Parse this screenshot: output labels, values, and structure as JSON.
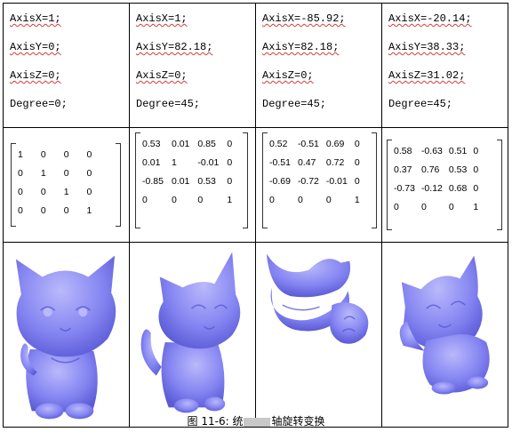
{
  "columns": [
    {
      "params": [
        "AxisX=1;",
        "AxisY=0;",
        "AxisZ=0;",
        "Degree=0;"
      ],
      "matrix": [
        [
          "1",
          "0",
          "0",
          "0"
        ],
        [
          "0",
          "1",
          "0",
          "0"
        ],
        [
          "0",
          "0",
          "1",
          "0"
        ],
        [
          "0",
          "0",
          "0",
          "1"
        ]
      ]
    },
    {
      "params": [
        "AxisX=1;",
        "AxisY=82.18;",
        "AxisZ=0;",
        "Degree=45;"
      ],
      "matrix": [
        [
          "0.53",
          "0.01",
          "0.85",
          "0"
        ],
        [
          "0.01",
          "1",
          "-0.01",
          "0"
        ],
        [
          "-0.85",
          "0.01",
          "0.53",
          "0"
        ],
        [
          "0",
          "0",
          "0",
          "1"
        ]
      ]
    },
    {
      "params": [
        "AxisX=-85.92;",
        "AxisY=82.18;",
        "AxisZ=0;",
        "Degree=45;"
      ],
      "matrix": [
        [
          "0.52",
          "-0.51",
          "0.69",
          "0"
        ],
        [
          "-0.51",
          "0.47",
          "0.72",
          "0"
        ],
        [
          "-0.69",
          "-0.72",
          "-0.01",
          "0"
        ],
        [
          "0",
          "0",
          "0",
          "1"
        ]
      ]
    },
    {
      "params": [
        "AxisX=-20.14;",
        "AxisY=38.33;",
        "AxisZ=31.02;",
        "Degree=45;"
      ],
      "matrix": [
        [
          "0.58",
          "-0.63",
          "0.51",
          "0"
        ],
        [
          "0.37",
          "0.76",
          "0.53",
          "0"
        ],
        [
          "-0.73",
          "-0.12",
          "0.68",
          "0"
        ],
        [
          "0",
          "0",
          "0",
          "1"
        ]
      ]
    }
  ],
  "images": [
    {
      "icon": "cat-model-front-icon"
    },
    {
      "icon": "cat-model-rotated-y-icon"
    },
    {
      "icon": "cat-model-rotated-xy-icon"
    },
    {
      "icon": "cat-model-rotated-xyz-icon"
    }
  ],
  "caption": {
    "prefix": "图 11-6: 统",
    "suffix": "轴旋转变换"
  },
  "colors": {
    "model_fill": "#8585f2",
    "model_shade": "#5a5ad6",
    "model_highlight": "#b9b9fb",
    "squiggle": "#d23c3c"
  }
}
